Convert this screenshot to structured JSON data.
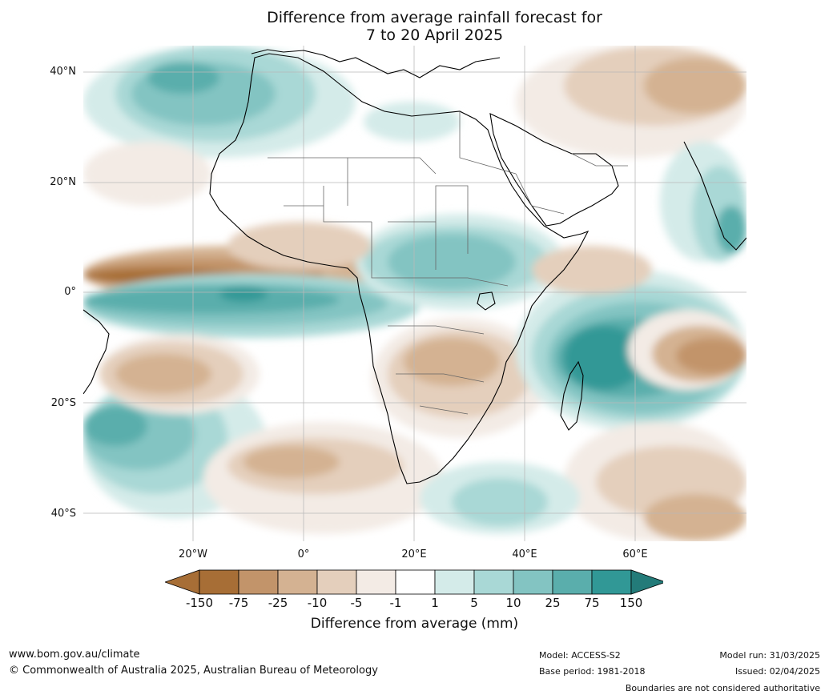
{
  "title": {
    "line1": "Difference from average rainfall forecast for",
    "line2": "7 to 20 April 2025"
  },
  "map": {
    "lat_labels": [
      "40°N",
      "20°N",
      "0°",
      "20°S",
      "40°S"
    ],
    "lon_labels": [
      "20°W",
      "0°",
      "20°E",
      "40°E",
      "60°E"
    ],
    "colors": {
      "dry_150": "#a76e36",
      "dry_75": "#c2946a",
      "dry_25": "#d4b292",
      "dry_10": "#e4cfbc",
      "dry_5": "#f3ebe5",
      "neutral": "#ffffff",
      "wet_1": "#d4ebe9",
      "wet_5": "#a9d8d6",
      "wet_10": "#83c4c2",
      "wet_25": "#5aaeac",
      "wet_75": "#319896",
      "wet_150": "#237b79"
    }
  },
  "colorbar": {
    "ticks": [
      "-150",
      "-75",
      "-25",
      "-10",
      "-5",
      "-1",
      "1",
      "5",
      "10",
      "25",
      "75",
      "150"
    ],
    "label": "Difference from average (mm)"
  },
  "footer": {
    "website": "www.bom.gov.au/climate",
    "copyright": "© Commonwealth of Australia 2025, Australian Bureau of Meteorology",
    "model": "Model: ACCESS-S2",
    "base_period": "Base period: 1981-2018",
    "model_run": "Model run: 31/03/2025",
    "issued": "Issued: 02/04/2025",
    "disclaimer": "Boundaries are not considered authoritative"
  }
}
